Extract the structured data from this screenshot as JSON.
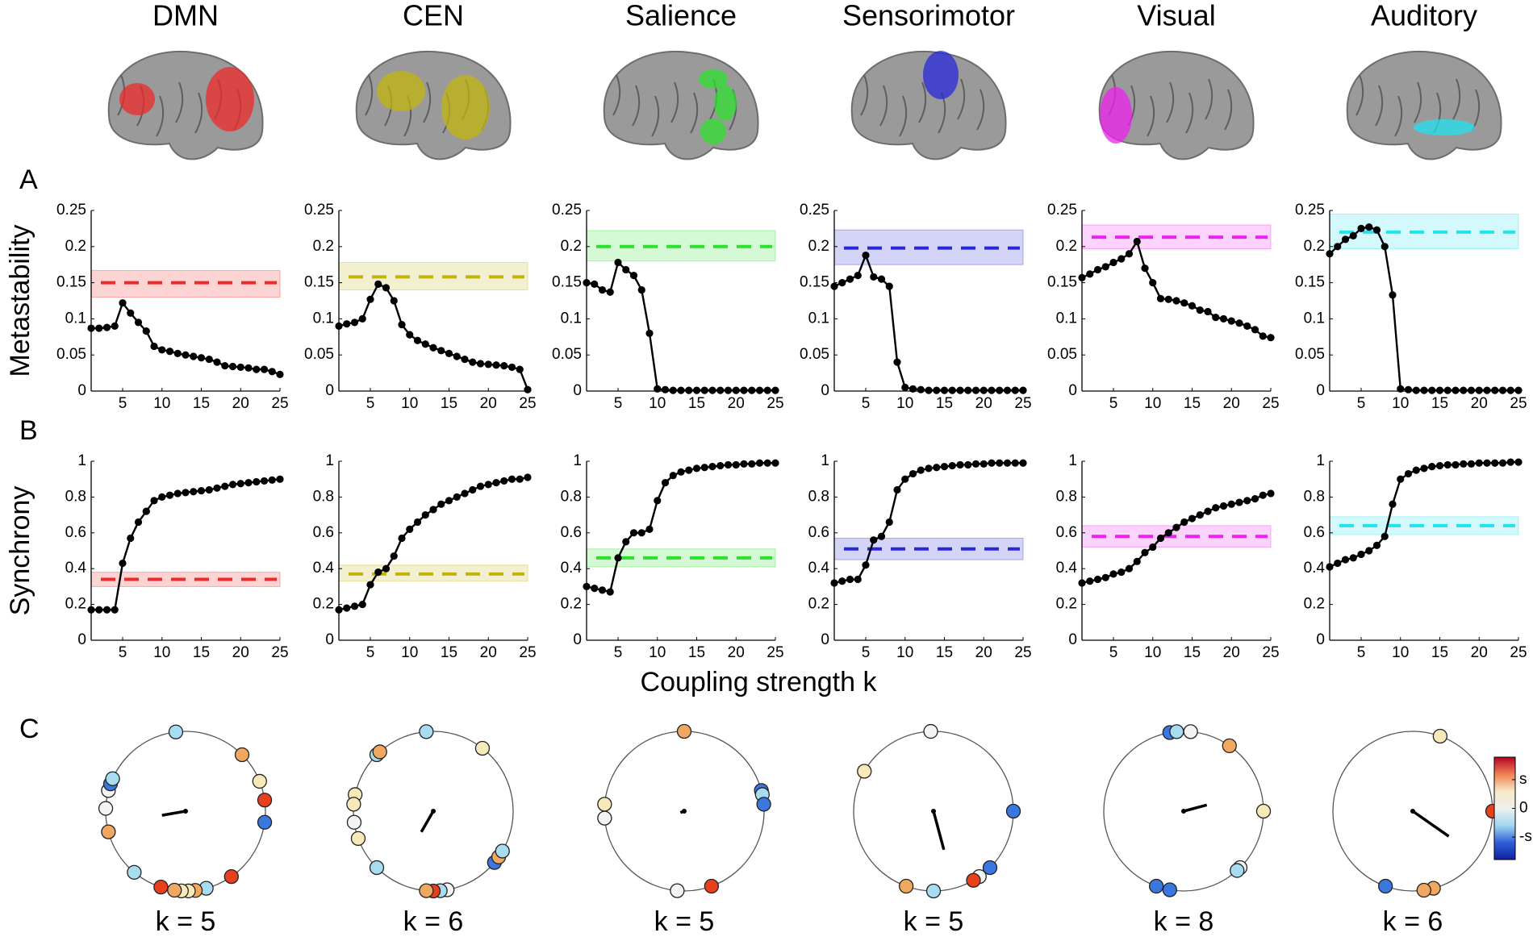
{
  "xlabel": "Coupling strength k",
  "colorbar": {
    "labels": [
      "s",
      "0",
      "-s"
    ]
  },
  "chart_data": [
    {
      "type": "line",
      "title": "DMN",
      "panel": "A",
      "ylabel": "Metastability",
      "color": "#ee2a2a",
      "x": [
        1,
        2,
        3,
        4,
        5,
        6,
        7,
        8,
        9,
        10,
        11,
        12,
        13,
        14,
        15,
        16,
        17,
        18,
        19,
        20,
        21,
        22,
        23,
        24,
        25
      ],
      "values": [
        0.087,
        0.087,
        0.088,
        0.09,
        0.122,
        0.108,
        0.095,
        0.083,
        0.062,
        0.057,
        0.055,
        0.052,
        0.05,
        0.048,
        0.046,
        0.044,
        0.04,
        0.035,
        0.034,
        0.033,
        0.032,
        0.03,
        0.03,
        0.027,
        0.023
      ],
      "reference": {
        "value": 0.15,
        "band": [
          0.13,
          0.167
        ]
      },
      "xlim": [
        1,
        25
      ],
      "xticks": [
        5,
        10,
        15,
        20,
        25
      ],
      "ylim": [
        0,
        0.25
      ],
      "yticks": [
        0,
        0.05,
        0.1,
        0.15,
        0.2,
        0.25
      ]
    },
    {
      "type": "line",
      "title": "CEN",
      "color": "#c2b40e",
      "x": [
        1,
        2,
        3,
        4,
        5,
        6,
        7,
        8,
        9,
        10,
        11,
        12,
        13,
        14,
        15,
        16,
        17,
        18,
        19,
        20,
        21,
        22,
        23,
        24,
        25
      ],
      "values": [
        0.09,
        0.093,
        0.095,
        0.1,
        0.127,
        0.148,
        0.143,
        0.125,
        0.092,
        0.078,
        0.07,
        0.065,
        0.06,
        0.056,
        0.052,
        0.048,
        0.044,
        0.04,
        0.038,
        0.037,
        0.036,
        0.035,
        0.033,
        0.03,
        0.002
      ],
      "reference": {
        "value": 0.158,
        "band": [
          0.14,
          0.178
        ]
      },
      "xlim": [
        1,
        25
      ],
      "xticks": [
        5,
        10,
        15,
        20,
        25
      ],
      "ylim": [
        0,
        0.25
      ],
      "yticks": [
        0,
        0.05,
        0.1,
        0.15,
        0.2,
        0.25
      ]
    },
    {
      "type": "line",
      "title": "Salience",
      "color": "#2ee02e",
      "x": [
        1,
        2,
        3,
        4,
        5,
        6,
        7,
        8,
        9,
        10,
        11,
        12,
        13,
        14,
        15,
        16,
        17,
        18,
        19,
        20,
        21,
        22,
        23,
        24,
        25
      ],
      "values": [
        0.15,
        0.148,
        0.14,
        0.137,
        0.178,
        0.168,
        0.16,
        0.14,
        0.08,
        0.003,
        0.002,
        0.001,
        0.001,
        0.001,
        0.001,
        0.001,
        0.001,
        0.001,
        0.001,
        0.001,
        0.001,
        0.001,
        0.001,
        0.001,
        0.001
      ],
      "reference": {
        "value": 0.2,
        "band": [
          0.18,
          0.222
        ]
      },
      "xlim": [
        1,
        25
      ],
      "xticks": [
        5,
        10,
        15,
        20,
        25
      ],
      "ylim": [
        0,
        0.25
      ],
      "yticks": [
        0,
        0.05,
        0.1,
        0.15,
        0.2,
        0.25
      ]
    },
    {
      "type": "line",
      "title": "Sensorimotor",
      "color": "#2828d8",
      "x": [
        1,
        2,
        3,
        4,
        5,
        6,
        7,
        8,
        9,
        10,
        11,
        12,
        13,
        14,
        15,
        16,
        17,
        18,
        19,
        20,
        21,
        22,
        23,
        24,
        25
      ],
      "values": [
        0.145,
        0.15,
        0.155,
        0.16,
        0.188,
        0.158,
        0.155,
        0.145,
        0.04,
        0.005,
        0.003,
        0.002,
        0.001,
        0.001,
        0.001,
        0.001,
        0.001,
        0.001,
        0.001,
        0.001,
        0.001,
        0.001,
        0.001,
        0.001,
        0.001
      ],
      "reference": {
        "value": 0.198,
        "band": [
          0.175,
          0.223
        ]
      },
      "xlim": [
        1,
        25
      ],
      "xticks": [
        5,
        10,
        15,
        20,
        25
      ],
      "ylim": [
        0,
        0.25
      ],
      "yticks": [
        0,
        0.05,
        0.1,
        0.15,
        0.2,
        0.25
      ]
    },
    {
      "type": "line",
      "title": "Visual",
      "color": "#ee22ee",
      "x": [
        1,
        2,
        3,
        4,
        5,
        6,
        7,
        8,
        9,
        10,
        11,
        12,
        13,
        14,
        15,
        16,
        17,
        18,
        19,
        20,
        21,
        22,
        23,
        24,
        25
      ],
      "values": [
        0.157,
        0.162,
        0.168,
        0.172,
        0.178,
        0.183,
        0.19,
        0.207,
        0.17,
        0.15,
        0.128,
        0.127,
        0.125,
        0.122,
        0.118,
        0.112,
        0.11,
        0.102,
        0.1,
        0.097,
        0.094,
        0.09,
        0.085,
        0.076,
        0.074
      ],
      "reference": {
        "value": 0.213,
        "band": [
          0.197,
          0.23
        ]
      },
      "xlim": [
        1,
        25
      ],
      "xticks": [
        5,
        10,
        15,
        20,
        25
      ],
      "ylim": [
        0,
        0.25
      ],
      "yticks": [
        0,
        0.05,
        0.1,
        0.15,
        0.2,
        0.25
      ]
    },
    {
      "type": "line",
      "title": "Auditory",
      "color": "#22e2ee",
      "x": [
        1,
        2,
        3,
        4,
        5,
        6,
        7,
        8,
        9,
        10,
        11,
        12,
        13,
        14,
        15,
        16,
        17,
        18,
        19,
        20,
        21,
        22,
        23,
        24,
        25
      ],
      "values": [
        0.19,
        0.2,
        0.21,
        0.215,
        0.225,
        0.227,
        0.223,
        0.2,
        0.133,
        0.003,
        0.002,
        0.001,
        0.001,
        0.001,
        0.001,
        0.001,
        0.001,
        0.001,
        0.001,
        0.001,
        0.001,
        0.001,
        0.001,
        0.001,
        0.001
      ],
      "reference": {
        "value": 0.22,
        "band": [
          0.197,
          0.245
        ]
      },
      "xlim": [
        1,
        25
      ],
      "xticks": [
        5,
        10,
        15,
        20,
        25
      ],
      "ylim": [
        0,
        0.25
      ],
      "yticks": [
        0,
        0.05,
        0.1,
        0.15,
        0.2,
        0.25
      ]
    },
    {
      "type": "line",
      "panel": "B",
      "ylabel": "Synchrony",
      "color": "#ee2a2a",
      "x": [
        1,
        2,
        3,
        4,
        5,
        6,
        7,
        8,
        9,
        10,
        11,
        12,
        13,
        14,
        15,
        16,
        17,
        18,
        19,
        20,
        21,
        22,
        23,
        24,
        25
      ],
      "values": [
        0.17,
        0.17,
        0.17,
        0.17,
        0.43,
        0.57,
        0.66,
        0.72,
        0.78,
        0.8,
        0.81,
        0.82,
        0.825,
        0.83,
        0.835,
        0.84,
        0.85,
        0.86,
        0.87,
        0.875,
        0.88,
        0.885,
        0.89,
        0.895,
        0.9
      ],
      "reference": {
        "value": 0.34,
        "band": [
          0.3,
          0.38
        ]
      },
      "xlim": [
        1,
        25
      ],
      "xticks": [
        5,
        10,
        15,
        20,
        25
      ],
      "ylim": [
        0,
        1
      ],
      "yticks": [
        0,
        0.2,
        0.4,
        0.6,
        0.8,
        1
      ]
    },
    {
      "type": "line",
      "color": "#c2b40e",
      "x": [
        1,
        2,
        3,
        4,
        5,
        6,
        7,
        8,
        9,
        10,
        11,
        12,
        13,
        14,
        15,
        16,
        17,
        18,
        19,
        20,
        21,
        22,
        23,
        24,
        25
      ],
      "values": [
        0.17,
        0.18,
        0.19,
        0.2,
        0.31,
        0.38,
        0.4,
        0.47,
        0.57,
        0.62,
        0.66,
        0.7,
        0.73,
        0.76,
        0.78,
        0.8,
        0.82,
        0.84,
        0.86,
        0.87,
        0.88,
        0.89,
        0.9,
        0.9,
        0.91
      ],
      "reference": {
        "value": 0.37,
        "band": [
          0.33,
          0.42
        ]
      },
      "xlim": [
        1,
        25
      ],
      "xticks": [
        5,
        10,
        15,
        20,
        25
      ],
      "ylim": [
        0,
        1
      ],
      "yticks": [
        0,
        0.2,
        0.4,
        0.6,
        0.8,
        1
      ]
    },
    {
      "type": "line",
      "color": "#2ee02e",
      "x": [
        1,
        2,
        3,
        4,
        5,
        6,
        7,
        8,
        9,
        10,
        11,
        12,
        13,
        14,
        15,
        16,
        17,
        18,
        19,
        20,
        21,
        22,
        23,
        24,
        25
      ],
      "values": [
        0.3,
        0.29,
        0.28,
        0.27,
        0.46,
        0.55,
        0.6,
        0.6,
        0.62,
        0.78,
        0.88,
        0.92,
        0.94,
        0.95,
        0.96,
        0.965,
        0.97,
        0.975,
        0.98,
        0.98,
        0.985,
        0.985,
        0.99,
        0.99,
        0.99
      ],
      "reference": {
        "value": 0.46,
        "band": [
          0.41,
          0.51
        ]
      },
      "xlim": [
        1,
        25
      ],
      "xticks": [
        5,
        10,
        15,
        20,
        25
      ],
      "ylim": [
        0,
        1
      ],
      "yticks": [
        0,
        0.2,
        0.4,
        0.6,
        0.8,
        1
      ]
    },
    {
      "type": "line",
      "color": "#2828d8",
      "x": [
        1,
        2,
        3,
        4,
        5,
        6,
        7,
        8,
        9,
        10,
        11,
        12,
        13,
        14,
        15,
        16,
        17,
        18,
        19,
        20,
        21,
        22,
        23,
        24,
        25
      ],
      "values": [
        0.32,
        0.33,
        0.34,
        0.34,
        0.42,
        0.56,
        0.58,
        0.66,
        0.84,
        0.9,
        0.93,
        0.95,
        0.96,
        0.965,
        0.97,
        0.975,
        0.98,
        0.98,
        0.985,
        0.985,
        0.99,
        0.99,
        0.99,
        0.99,
        0.99
      ],
      "reference": {
        "value": 0.51,
        "band": [
          0.45,
          0.57
        ]
      },
      "xlim": [
        1,
        25
      ],
      "xticks": [
        5,
        10,
        15,
        20,
        25
      ],
      "ylim": [
        0,
        1
      ],
      "yticks": [
        0,
        0.2,
        0.4,
        0.6,
        0.8,
        1
      ]
    },
    {
      "type": "line",
      "color": "#ee22ee",
      "x": [
        1,
        2,
        3,
        4,
        5,
        6,
        7,
        8,
        9,
        10,
        11,
        12,
        13,
        14,
        15,
        16,
        17,
        18,
        19,
        20,
        21,
        22,
        23,
        24,
        25
      ],
      "values": [
        0.32,
        0.33,
        0.34,
        0.35,
        0.37,
        0.38,
        0.4,
        0.44,
        0.49,
        0.52,
        0.57,
        0.6,
        0.63,
        0.66,
        0.68,
        0.7,
        0.72,
        0.74,
        0.75,
        0.76,
        0.77,
        0.78,
        0.79,
        0.81,
        0.82
      ],
      "reference": {
        "value": 0.58,
        "band": [
          0.52,
          0.64
        ]
      },
      "xlim": [
        1,
        25
      ],
      "xticks": [
        5,
        10,
        15,
        20,
        25
      ],
      "ylim": [
        0,
        1
      ],
      "yticks": [
        0,
        0.2,
        0.4,
        0.6,
        0.8,
        1
      ]
    },
    {
      "type": "line",
      "color": "#22e2ee",
      "x": [
        1,
        2,
        3,
        4,
        5,
        6,
        7,
        8,
        9,
        10,
        11,
        12,
        13,
        14,
        15,
        16,
        17,
        18,
        19,
        20,
        21,
        22,
        23,
        24,
        25
      ],
      "values": [
        0.41,
        0.43,
        0.45,
        0.46,
        0.48,
        0.5,
        0.53,
        0.58,
        0.76,
        0.9,
        0.93,
        0.95,
        0.96,
        0.97,
        0.975,
        0.98,
        0.98,
        0.985,
        0.985,
        0.99,
        0.99,
        0.99,
        0.99,
        0.995,
        0.995
      ],
      "reference": {
        "value": 0.64,
        "band": [
          0.59,
          0.69
        ]
      },
      "xlim": [
        1,
        25
      ],
      "xticks": [
        5,
        10,
        15,
        20,
        25
      ],
      "ylim": [
        0,
        1
      ],
      "yticks": [
        0,
        0.2,
        0.4,
        0.6,
        0.8,
        1
      ]
    },
    {
      "type": "phase",
      "panel": "C",
      "label": "k = 5",
      "phases": [
        97,
        45,
        22,
        8,
        -8,
        -55,
        -75,
        -83,
        -88,
        -93,
        -98,
        -108,
        -130,
        -165,
        178,
        165,
        160,
        156
      ],
      "colors": [
        "#a8dcf0",
        "#f0a860",
        "#f8eab8",
        "#e8401c",
        "#3a78e0",
        "#e8401c",
        "#a8dcf0",
        "#f0a860",
        "#f8eab8",
        "#f8eab8",
        "#f0a860",
        "#e8401c",
        "#a8dcf0",
        "#f0a860",
        "#f4f4f4",
        "#f4f4f4",
        "#3a78e0",
        "#a8dcf0"
      ],
      "mean_vector": {
        "angle": 190,
        "length": 0.3
      }
    },
    {
      "type": "phase",
      "label": "k = 6",
      "phases": [
        95,
        52,
        135,
        132,
        168,
        175,
        188,
        200,
        225,
        -80,
        -85,
        -90,
        -95,
        -40,
        -35,
        -30
      ],
      "colors": [
        "#a8dcf0",
        "#f8eab8",
        "#a8dcf0",
        "#f0a860",
        "#f8eab8",
        "#f8eab8",
        "#f4f4f4",
        "#f8eab8",
        "#a8dcf0",
        "#f4f4f4",
        "#a8dcf0",
        "#e8401c",
        "#f0a860",
        "#3a78e0",
        "#f0a860",
        "#a8dcf0"
      ],
      "mean_vector": {
        "angle": 240,
        "length": 0.3
      }
    },
    {
      "type": "phase",
      "label": "k = 5",
      "phases": [
        90,
        15,
        12,
        5,
        175,
        185,
        -70,
        -95
      ],
      "colors": [
        "#f0a860",
        "#3a78e0",
        "#a8dcf0",
        "#3a78e0",
        "#f8eab8",
        "#f4f4f4",
        "#e8401c",
        "#f4f4f4"
      ],
      "mean_vector": {
        "angle": 200,
        "length": 0.05
      }
    },
    {
      "type": "phase",
      "label": "k = 5",
      "phases": [
        92,
        150,
        0,
        -45,
        -55,
        -60,
        -90,
        -110
      ],
      "colors": [
        "#f4f4f4",
        "#f8eab8",
        "#3a78e0",
        "#3a78e0",
        "#f4f4f4",
        "#e8401c",
        "#a8dcf0",
        "#f0a860"
      ],
      "mean_vector": {
        "angle": -75,
        "length": 0.5
      }
    },
    {
      "type": "phase",
      "label": "k = 8",
      "phases": [
        100,
        95,
        85,
        55,
        0,
        -45,
        -48,
        -100,
        -110
      ],
      "colors": [
        "#3a78e0",
        "#a8dcf0",
        "#f4f4f4",
        "#f0a860",
        "#f8eab8",
        "#f4f4f4",
        "#a8dcf0",
        "#3a78e0",
        "#3a78e0"
      ],
      "mean_vector": {
        "angle": 15,
        "length": 0.3
      }
    },
    {
      "type": "phase",
      "label": "k = 6",
      "phases": [
        70,
        0,
        -75,
        -82,
        -110
      ],
      "colors": [
        "#f8eab8",
        "#e8401c",
        "#f0a860",
        "#f0a860",
        "#3a78e0"
      ],
      "mean_vector": {
        "angle": -35,
        "length": 0.55
      }
    }
  ]
}
